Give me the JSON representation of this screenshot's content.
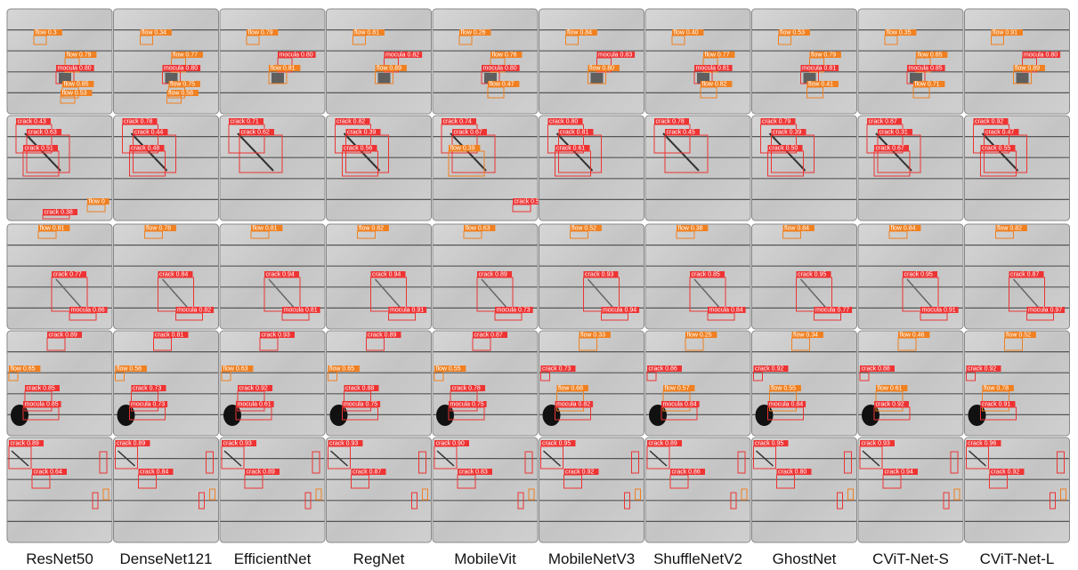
{
  "columns": [
    "ResNet50",
    "DenseNet121",
    "EfficientNet",
    "RegNet",
    "MobileVit",
    "MobileNetV3",
    "ShuffleNetV2",
    "GhostNet",
    "CViT-Net-S",
    "CViT-Net-L"
  ],
  "grid": [
    [
      [
        "flow 0.3",
        "flow 0.79",
        "mocula 0.80",
        "flow 0.85",
        "flow 0.53"
      ],
      [
        "flow 0.34",
        "flow 0.77",
        "mocula 0.80",
        "flow 0.75",
        "flow 0.58"
      ],
      [
        "flow 0.79",
        "mocula 0.80",
        "flow 0.81"
      ],
      [
        "flow 0.81",
        "mocula 0.82",
        "flow 0.89"
      ],
      [
        "flow 0.26",
        "flow 0.76",
        "mocula 0.80",
        "flow 0.47"
      ],
      [
        "flow 0.84",
        "mocula 0.83",
        "flow 0.80"
      ],
      [
        "flow 0.40",
        "flow 0.77",
        "mocula 0.81",
        "flow 0.82"
      ],
      [
        "flow 0.53",
        "flow 0.79",
        "mocula 0.81",
        "flow 0.41"
      ],
      [
        "flow 0.35",
        "flow 0.85",
        "mocula 0.85",
        "flow 0.71"
      ],
      [
        "flow 0.91",
        "mocula 0.80",
        "flow 0.89"
      ]
    ],
    [
      [
        "crack 0.43",
        "crack 0.63",
        "crack 0.51",
        "flow 0",
        "crack 0.38"
      ],
      [
        "crack 0.78",
        "crack 0.44",
        "crack 0.48"
      ],
      [
        "crack 0.71",
        "crack 0.62"
      ],
      [
        "crack 0.82",
        "crack 0.39",
        "crack 0.56"
      ],
      [
        "crack 0.74",
        "crack 0.67",
        "flow 0.39",
        "crack 0.54"
      ],
      [
        "crack 0.80",
        "crack 0.81",
        "crack 0.61"
      ],
      [
        "crack 0.78",
        "crack 0.45"
      ],
      [
        "crack 0.79",
        "crack 0.39",
        "crack 0.50"
      ],
      [
        "crack 0.87",
        "crack 0.31",
        "crack 0.67"
      ],
      [
        "crack 0.92",
        "crack 0.47",
        "crack 0.55"
      ]
    ],
    [
      [
        "flow 0.81",
        "crack 0.77",
        "mocula 0.86"
      ],
      [
        "flow 0.78",
        "crack 0.84",
        "mocula 0.82"
      ],
      [
        "flow 0.81",
        "crack 0.94",
        "mocula 0.81"
      ],
      [
        "flow 0.82",
        "crack 0.94",
        "mocula 0.91"
      ],
      [
        "flow 0.63",
        "crack 0.89",
        "mocula 0.73"
      ],
      [
        "flow 0.52",
        "crack 0.93",
        "mocula 0.94"
      ],
      [
        "flow 0.38",
        "crack 0.85",
        "mocula 0.84"
      ],
      [
        "flow 0.84",
        "crack 0.95",
        "mocula 0.77"
      ],
      [
        "flow 0.84",
        "crack 0.95",
        "mocula 0.91"
      ],
      [
        "flow 0.82",
        "crack 0.87",
        "mocula 0.97"
      ]
    ],
    [
      [
        "crack 0.89",
        "flow 0.65",
        "crack 0.85",
        "mocula 0.85"
      ],
      [
        "crack 0.81",
        "flow 0.58",
        "crack 0.73",
        "mocula 0.73"
      ],
      [
        "crack 0.93",
        "flow 0.63",
        "crack 0.92",
        "mocula 0.61"
      ],
      [
        "crack 0.89",
        "flow 0.65",
        "crack 0.88",
        "mocula 0.75"
      ],
      [
        "crack 0.87",
        "flow 0.55",
        "crack 0.78",
        "mocula 0.75"
      ],
      [
        "flow 0.33",
        "crack 0.73",
        "flow 0.68",
        "mocula 0.82"
      ],
      [
        "flow 0.25",
        "crack 0.86",
        "flow 0.57",
        "mocula 0.84"
      ],
      [
        "flow 0.34",
        "crack 0.92",
        "flow 0.55",
        "mocula 0.84"
      ],
      [
        "flow 0.46",
        "crack 0.88",
        "flow 0.61",
        "crack 0.92"
      ],
      [
        "flow 0.52",
        "crack 0.92",
        "flow 0.78",
        "crack 0.91"
      ]
    ],
    [
      [
        "crack 0.89",
        "crack 0.64"
      ],
      [
        "crack 0.89",
        "crack 0.84"
      ],
      [
        "crack 0.93",
        "crack 0.89"
      ],
      [
        "crack 0.93",
        "crack 0.87"
      ],
      [
        "crack 0.90",
        "crack 0.83"
      ],
      [
        "crack 0.95",
        "crack 0.92"
      ],
      [
        "crack 0.89",
        "crack 0.86"
      ],
      [
        "crack 0.95",
        "crack 0.80"
      ],
      [
        "crack 0.93",
        "crack 0.94"
      ],
      [
        "crack 0.96",
        "crack 0.92"
      ]
    ]
  ]
}
